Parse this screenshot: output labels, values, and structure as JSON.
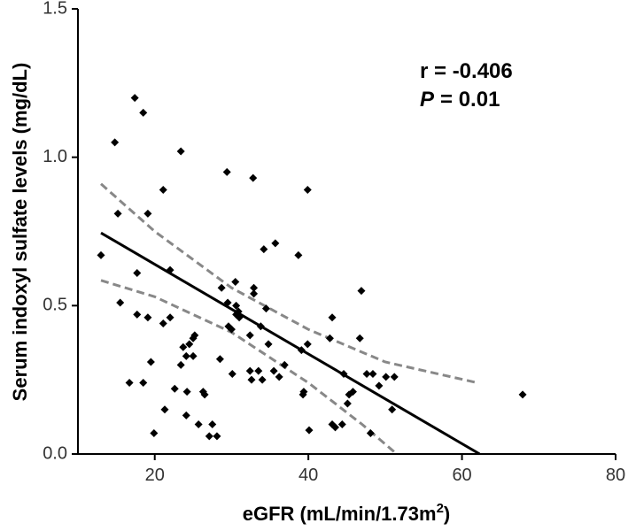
{
  "chart_data": {
    "type": "scatter",
    "ylabel": "Serum indoxyl sulfate levels (mg/dL)",
    "xlabel": {
      "main": "eGFR (mL/min/1.73m",
      "sup": "2",
      "end": ")"
    },
    "r_text": "r = -0.406",
    "p_label": "P",
    "p_text": "= 0.01",
    "color": "#000000",
    "x": [
      13.0,
      14.8,
      15.2,
      15.5,
      16.7,
      17.4,
      17.7,
      17.7,
      18.5,
      18.5,
      19.1,
      19.1,
      19.5,
      19.9,
      21.1,
      21.1,
      21.3,
      22.0,
      22.0,
      22.6,
      23.4,
      23.4,
      23.7,
      24.1,
      24.2,
      24.1,
      24.5,
      25.0,
      25.0,
      25.2,
      25.7,
      26.3,
      26.5,
      27.1,
      27.5,
      28.1,
      28.5,
      28.7,
      29.4,
      29.5,
      29.6,
      30.0,
      30.1,
      30.5,
      30.6,
      30.6,
      30.9,
      31.0,
      32.4,
      32.4,
      32.6,
      32.8,
      32.9,
      32.9,
      33.5,
      33.8,
      34.0,
      34.2,
      34.5,
      34.8,
      35.5,
      35.7,
      36.2,
      36.9,
      38.7,
      39.1,
      39.3,
      39.4,
      39.9,
      39.9,
      40.1,
      42.8,
      43.1,
      43.1,
      43.5,
      44.4,
      44.6,
      45.1,
      45.3,
      45.8,
      46.7,
      46.9,
      47.6,
      48.1,
      48.4,
      49.2,
      50.1,
      50.9,
      51.2,
      67.9
    ],
    "values": [
      0.67,
      1.05,
      0.81,
      0.51,
      0.24,
      1.2,
      0.61,
      0.47,
      1.15,
      0.24,
      0.81,
      0.46,
      0.31,
      0.07,
      0.89,
      0.44,
      0.15,
      0.62,
      0.46,
      0.22,
      1.02,
      0.3,
      0.36,
      0.33,
      0.21,
      0.13,
      0.37,
      0.39,
      0.33,
      0.4,
      0.1,
      0.21,
      0.2,
      0.06,
      0.1,
      0.06,
      0.32,
      0.56,
      0.95,
      0.51,
      0.43,
      0.42,
      0.27,
      0.58,
      0.5,
      0.47,
      0.48,
      0.46,
      0.4,
      0.28,
      0.25,
      0.93,
      0.56,
      0.54,
      0.28,
      0.43,
      0.25,
      0.69,
      0.49,
      0.37,
      0.28,
      0.71,
      0.26,
      0.3,
      0.67,
      0.35,
      0.2,
      0.21,
      0.89,
      0.37,
      0.08,
      0.39,
      0.46,
      0.1,
      0.09,
      0.1,
      0.27,
      0.17,
      0.2,
      0.21,
      0.39,
      0.55,
      0.27,
      0.07,
      0.27,
      0.23,
      0.26,
      0.15,
      0.26,
      0.2
    ],
    "fit": {
      "color": "#000000",
      "x": [
        13,
        62.3
      ],
      "values": [
        0.745,
        0
      ]
    },
    "bands": [
      {
        "color": "#888888",
        "x": [
          13,
          20,
          30,
          40,
          50,
          62
        ],
        "values": [
          0.91,
          0.75,
          0.56,
          0.42,
          0.31,
          0.24
        ]
      },
      {
        "color": "#888888",
        "x": [
          13,
          20,
          30,
          40,
          47,
          51.5
        ],
        "values": [
          0.585,
          0.53,
          0.41,
          0.24,
          0.1,
          0
        ]
      }
    ],
    "xlim": [
      10,
      80
    ],
    "ylim": [
      0,
      1.5
    ],
    "xticks": [
      20,
      40,
      60,
      80
    ],
    "yticks": [
      {
        "value": 0,
        "label": "0.0"
      },
      0.5,
      {
        "value": 1,
        "label": "1.0"
      },
      1.5
    ]
  }
}
